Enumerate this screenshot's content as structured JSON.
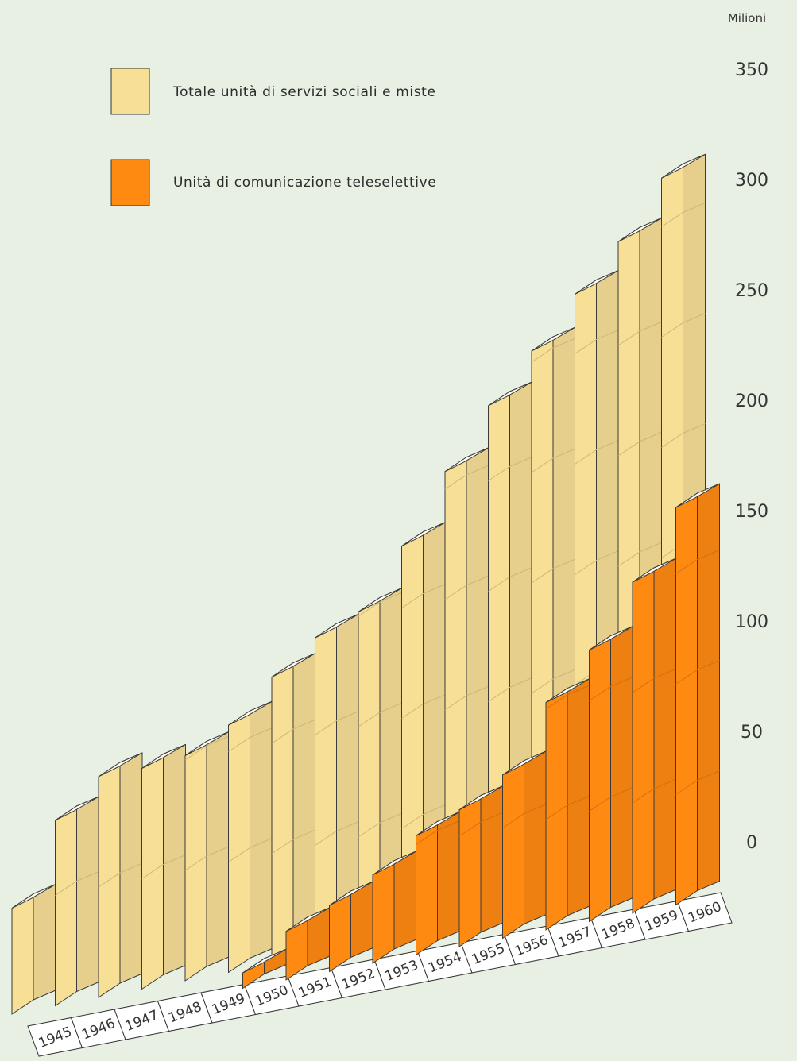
{
  "chart_data": {
    "type": "bar",
    "title": "",
    "xlabel": "",
    "ylabel": "Milioni",
    "ylim": [
      0,
      370
    ],
    "yticks": [
      0,
      50,
      100,
      150,
      200,
      250,
      300,
      350
    ],
    "grid": false,
    "legend_position": "top-left",
    "categories": [
      "1945",
      "1946",
      "1947",
      "1948",
      "1949",
      "1950",
      "1951",
      "1952",
      "1953",
      "1954",
      "1955",
      "1956",
      "1957",
      "1958",
      "1959",
      "1960"
    ],
    "series": [
      {
        "name": "Totale unità di servizi sociali e miste",
        "color": "#f7df96",
        "values": [
          48,
          84,
          100,
          100,
          102,
          112,
          130,
          144,
          152,
          178,
          208,
          234,
          255,
          277,
          297,
          322
        ]
      },
      {
        "name": "Unità di comunicazione teleselettive",
        "color": "#ff8a12",
        "values": [
          null,
          null,
          null,
          null,
          null,
          7,
          22,
          30,
          40,
          54,
          62,
          74,
          103,
          123,
          150,
          180
        ]
      }
    ]
  }
}
